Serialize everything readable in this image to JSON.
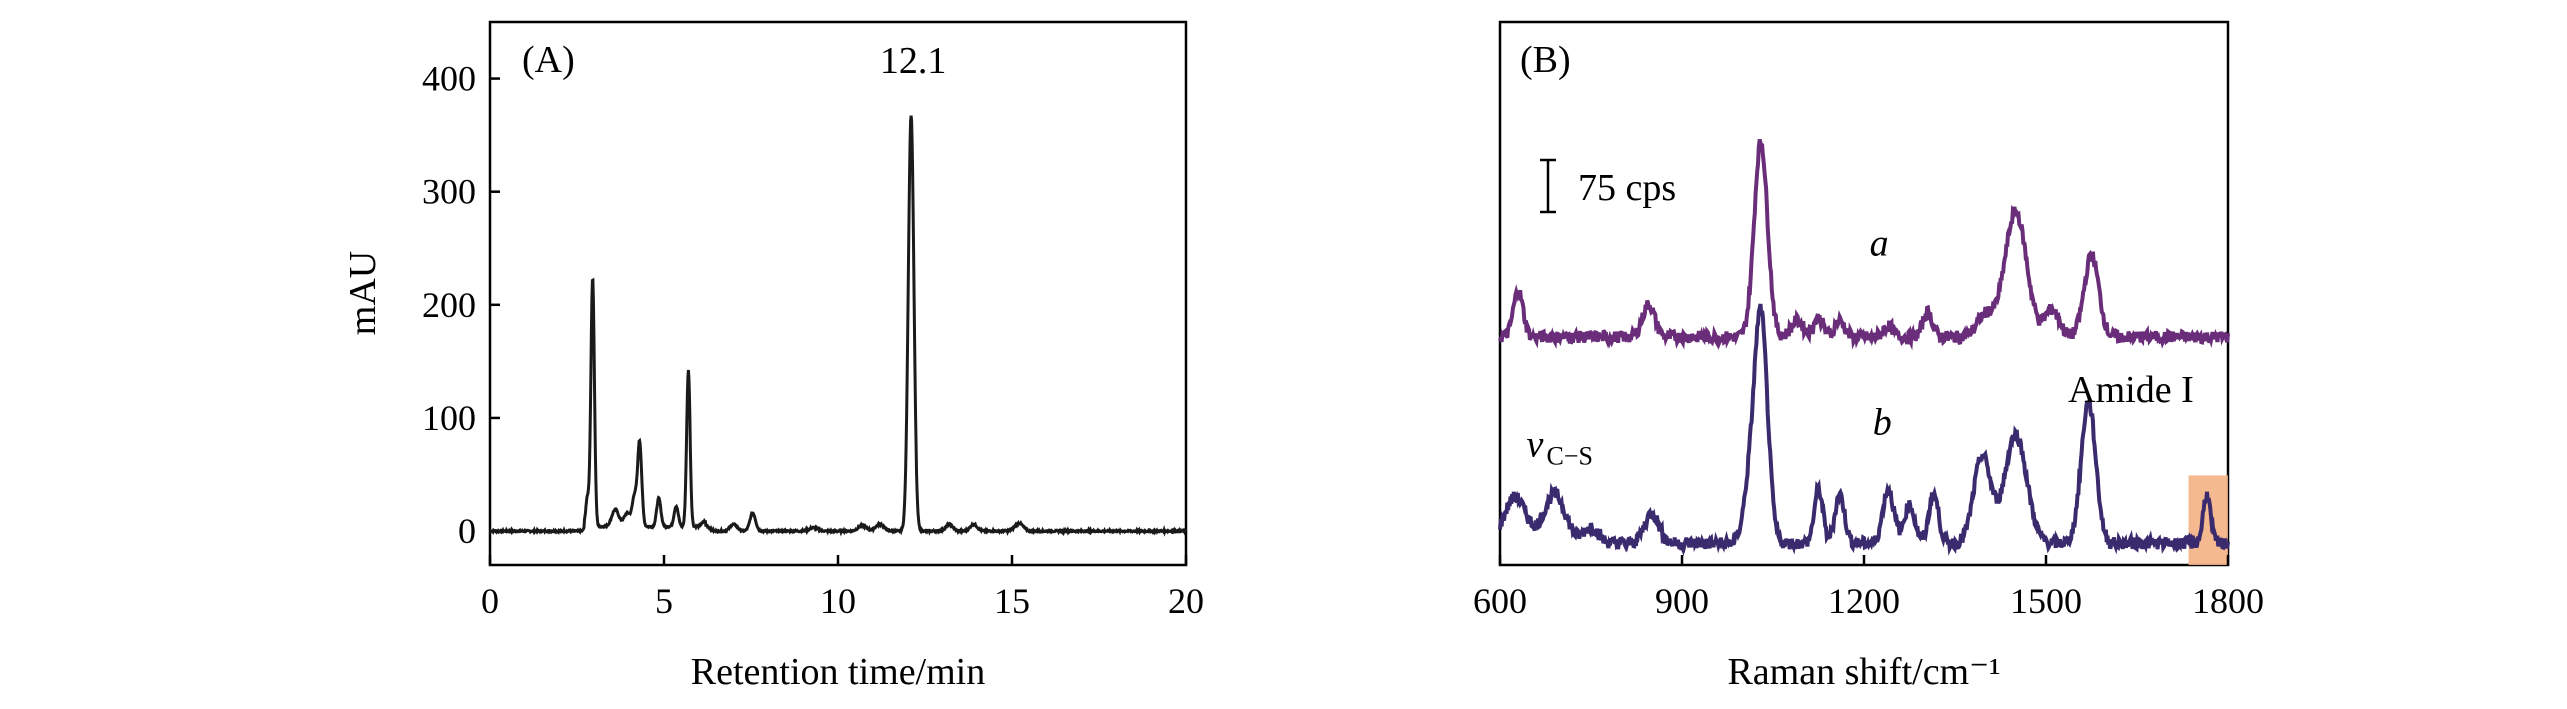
{
  "chart_data": [
    {
      "type": "line",
      "panel_label": "(A)",
      "xlabel": "Retention time/min",
      "ylabel": "mAU",
      "xlim": [
        0,
        20
      ],
      "ylim": [
        -30,
        450
      ],
      "xticks": [
        0,
        5,
        10,
        15,
        20
      ],
      "yticks": [
        0,
        100,
        200,
        300,
        400
      ],
      "grid": false,
      "annotations": [
        {
          "text": "12.1",
          "x": 12.1,
          "y": 405
        }
      ],
      "series": [
        {
          "color": "#1a1a1a",
          "peaks": [
            {
              "x": 2.95,
              "height": 220,
              "width": 0.05
            },
            {
              "x": 2.8,
              "height": 25,
              "width": 0.05
            },
            {
              "x": 3.6,
              "height": 15,
              "width": 0.1
            },
            {
              "x": 3.95,
              "height": 12,
              "width": 0.1
            },
            {
              "x": 4.3,
              "height": 75,
              "width": 0.06
            },
            {
              "x": 4.15,
              "height": 25,
              "width": 0.06
            },
            {
              "x": 4.85,
              "height": 25,
              "width": 0.06
            },
            {
              "x": 5.35,
              "height": 18,
              "width": 0.06
            },
            {
              "x": 5.7,
              "height": 138,
              "width": 0.05
            },
            {
              "x": 6.2,
              "height": 5,
              "width": 0.1
            },
            {
              "x": 7.0,
              "height": 6,
              "width": 0.1
            },
            {
              "x": 7.55,
              "height": 16,
              "width": 0.08
            },
            {
              "x": 9.3,
              "height": 3,
              "width": 0.12
            },
            {
              "x": 10.7,
              "height": 5,
              "width": 0.12
            },
            {
              "x": 11.2,
              "height": 6,
              "width": 0.12
            },
            {
              "x": 12.1,
              "height": 368,
              "width": 0.08
            },
            {
              "x": 13.2,
              "height": 6,
              "width": 0.1
            },
            {
              "x": 13.9,
              "height": 6,
              "width": 0.1
            },
            {
              "x": 15.2,
              "height": 7,
              "width": 0.12
            }
          ]
        }
      ]
    },
    {
      "type": "line",
      "panel_label": "(B)",
      "xlabel": "Raman shift/cm⁻¹",
      "ylabel": "",
      "xlim": [
        600,
        1800
      ],
      "ylim": [
        0,
        10
      ],
      "xticks": [
        600,
        900,
        1200,
        1500,
        1800
      ],
      "grid": false,
      "scale_bar": "75 cps",
      "annotations": [
        {
          "text": "a",
          "x": 1225,
          "y": 5.7
        },
        {
          "text": "b",
          "x": 1230,
          "y": 2.4
        },
        {
          "text": "Amide I",
          "x": 1640,
          "y": 3.0
        },
        {
          "text": "v",
          "sub": "C−S",
          "x": 680,
          "y": 2.0
        }
      ],
      "highlight": {
        "x": [
          1735,
          1800
        ],
        "color": "#f4b183"
      },
      "series": [
        {
          "name": "a",
          "color": "#6a2d7a",
          "baseline": 4.2,
          "peaks": [
            {
              "x": 630,
              "height": 0.85,
              "width": 8
            },
            {
              "x": 845,
              "height": 0.6,
              "width": 10
            },
            {
              "x": 1030,
              "height": 3.6,
              "width": 11
            },
            {
              "x": 1090,
              "height": 0.3,
              "width": 10
            },
            {
              "x": 1125,
              "height": 0.35,
              "width": 8
            },
            {
              "x": 1160,
              "height": 0.3,
              "width": 8
            },
            {
              "x": 1240,
              "height": 0.2,
              "width": 8
            },
            {
              "x": 1305,
              "height": 0.45,
              "width": 8
            },
            {
              "x": 1400,
              "height": 0.4,
              "width": 14
            },
            {
              "x": 1450,
              "height": 2.3,
              "width": 18
            },
            {
              "x": 1510,
              "height": 0.5,
              "width": 12
            },
            {
              "x": 1575,
              "height": 1.5,
              "width": 12
            }
          ]
        },
        {
          "name": "b",
          "color": "#3a2a6e",
          "baseline": 0.4,
          "peaks": [
            {
              "x": 625,
              "height": 0.85,
              "width": 18
            },
            {
              "x": 690,
              "height": 0.9,
              "width": 18
            },
            {
              "x": 750,
              "height": 0.3,
              "width": 12
            },
            {
              "x": 850,
              "height": 0.55,
              "width": 12
            },
            {
              "x": 1010,
              "height": 0.8,
              "width": 10
            },
            {
              "x": 1030,
              "height": 4.2,
              "width": 11
            },
            {
              "x": 1125,
              "height": 1.0,
              "width": 7
            },
            {
              "x": 1160,
              "height": 0.9,
              "width": 8
            },
            {
              "x": 1240,
              "height": 1.0,
              "width": 9
            },
            {
              "x": 1275,
              "height": 0.7,
              "width": 9
            },
            {
              "x": 1315,
              "height": 0.9,
              "width": 8
            },
            {
              "x": 1395,
              "height": 1.6,
              "width": 14
            },
            {
              "x": 1450,
              "height": 2.0,
              "width": 18
            },
            {
              "x": 1570,
              "height": 2.6,
              "width": 12
            },
            {
              "x": 1765,
              "height": 0.9,
              "width": 6
            }
          ]
        }
      ]
    }
  ]
}
